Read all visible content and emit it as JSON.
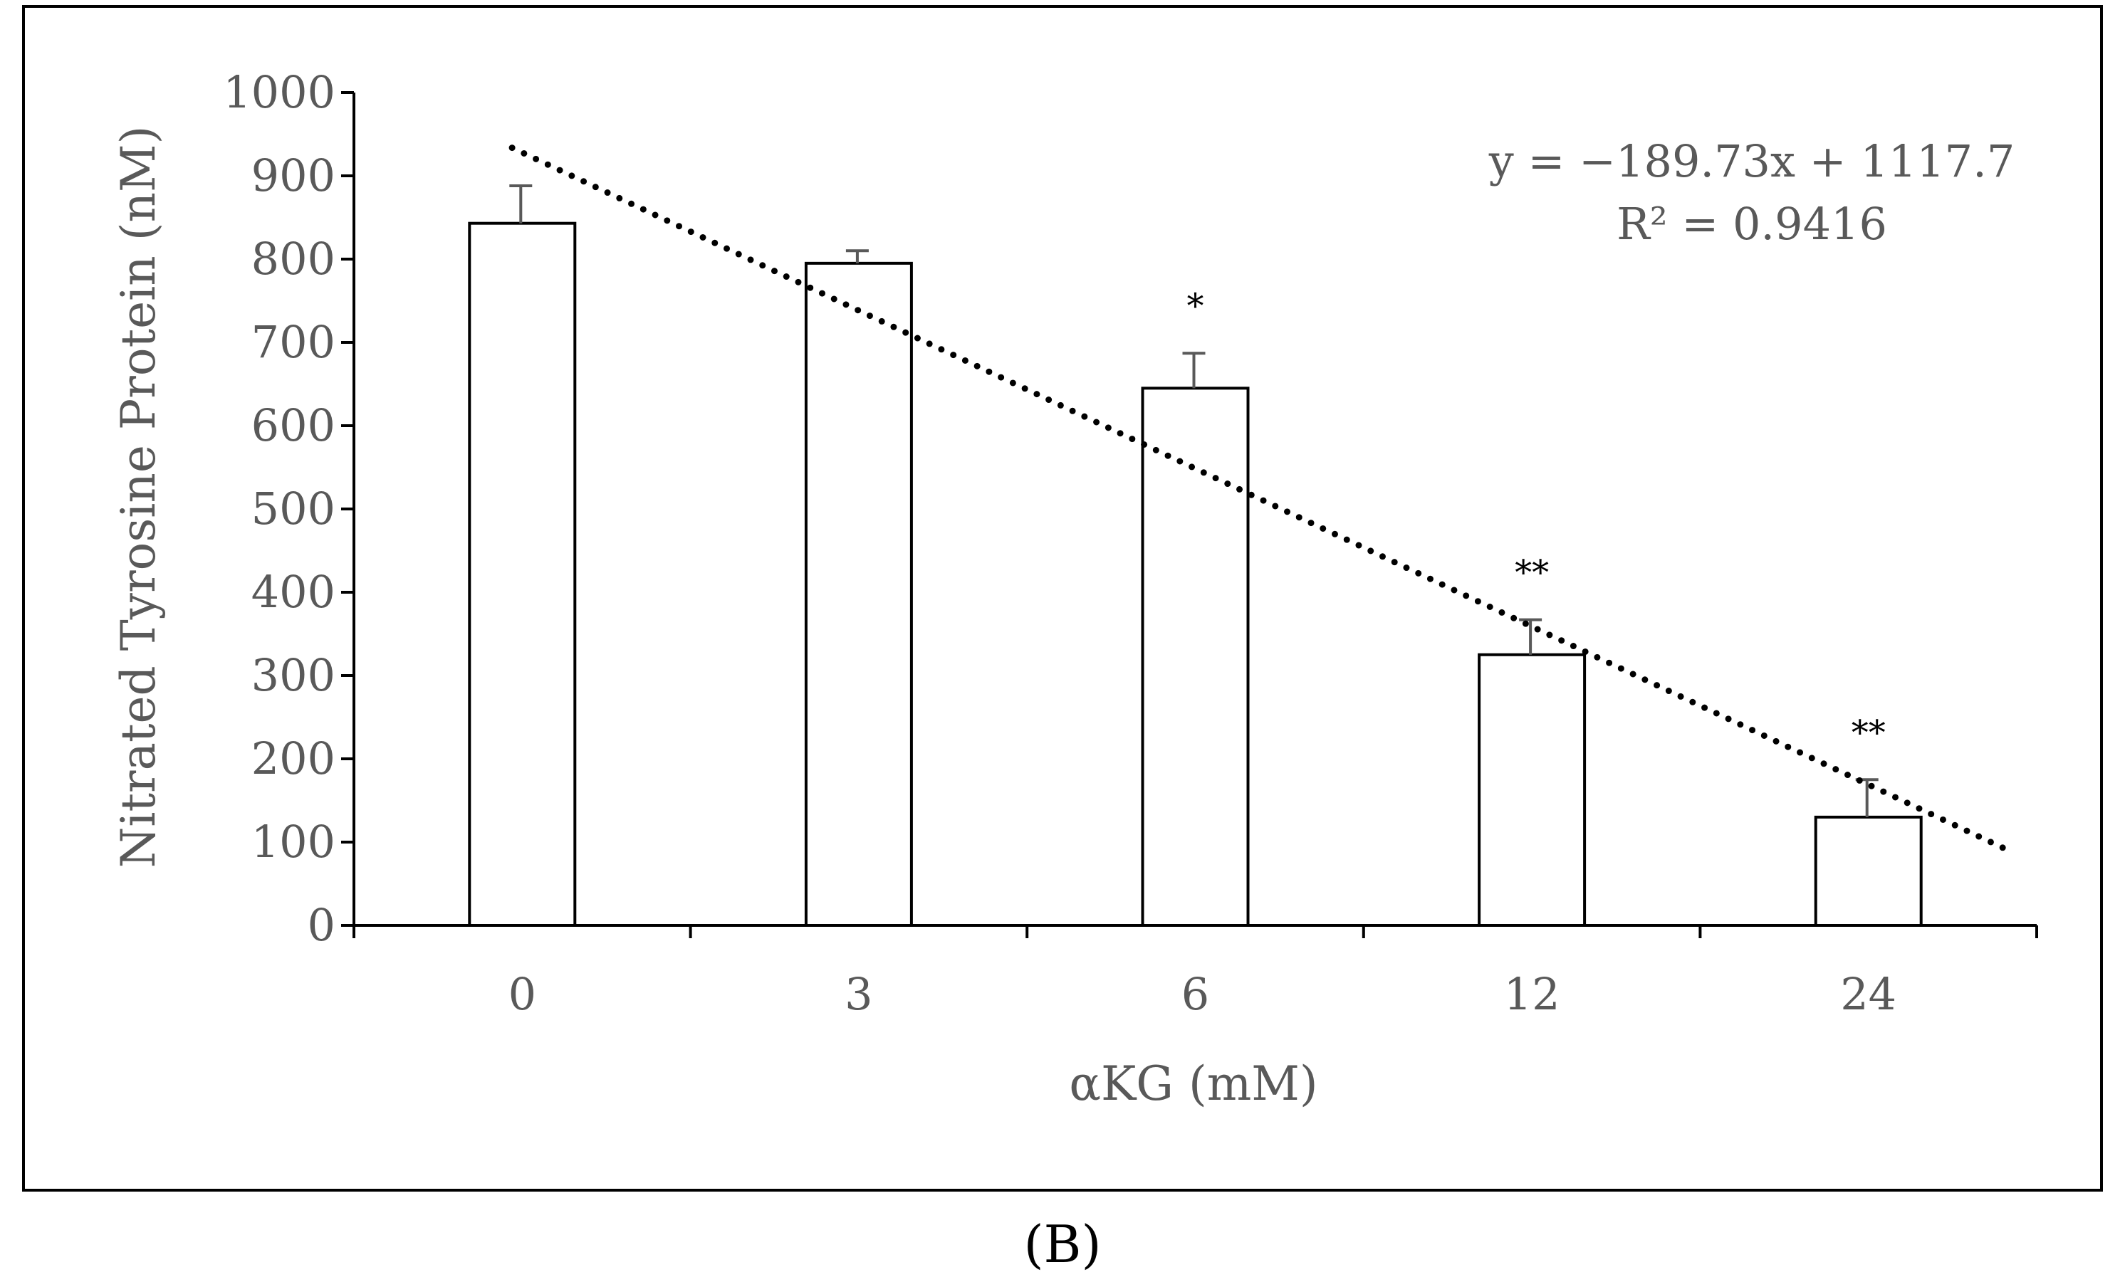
{
  "chart_data": {
    "type": "bar",
    "categories": [
      "0",
      "3",
      "6",
      "12",
      "24"
    ],
    "values": [
      843,
      795,
      645,
      325,
      130
    ],
    "errors": [
      45,
      15,
      42,
      42,
      45
    ],
    "significance": [
      "",
      "",
      "*",
      "**",
      "**"
    ],
    "ylabel": "Nitrated Tyrosine Protein (nM)",
    "xlabel": "αKG (mM)",
    "ylim": [
      0,
      1000
    ],
    "yticks": [
      "0",
      "100",
      "200",
      "300",
      "400",
      "500",
      "600",
      "700",
      "800",
      "900",
      "1000"
    ],
    "trendline": {
      "type": "linear",
      "slope": -189.73,
      "intercept": 1117.7,
      "equation": "y = −189.73x + 1117.7",
      "r2_label": "R² = 0.9416",
      "style": "dotted"
    },
    "bar_color": "#ffffff",
    "bar_edge_color": "#000000",
    "text_color": "#595959"
  },
  "panel_label": "(B)"
}
